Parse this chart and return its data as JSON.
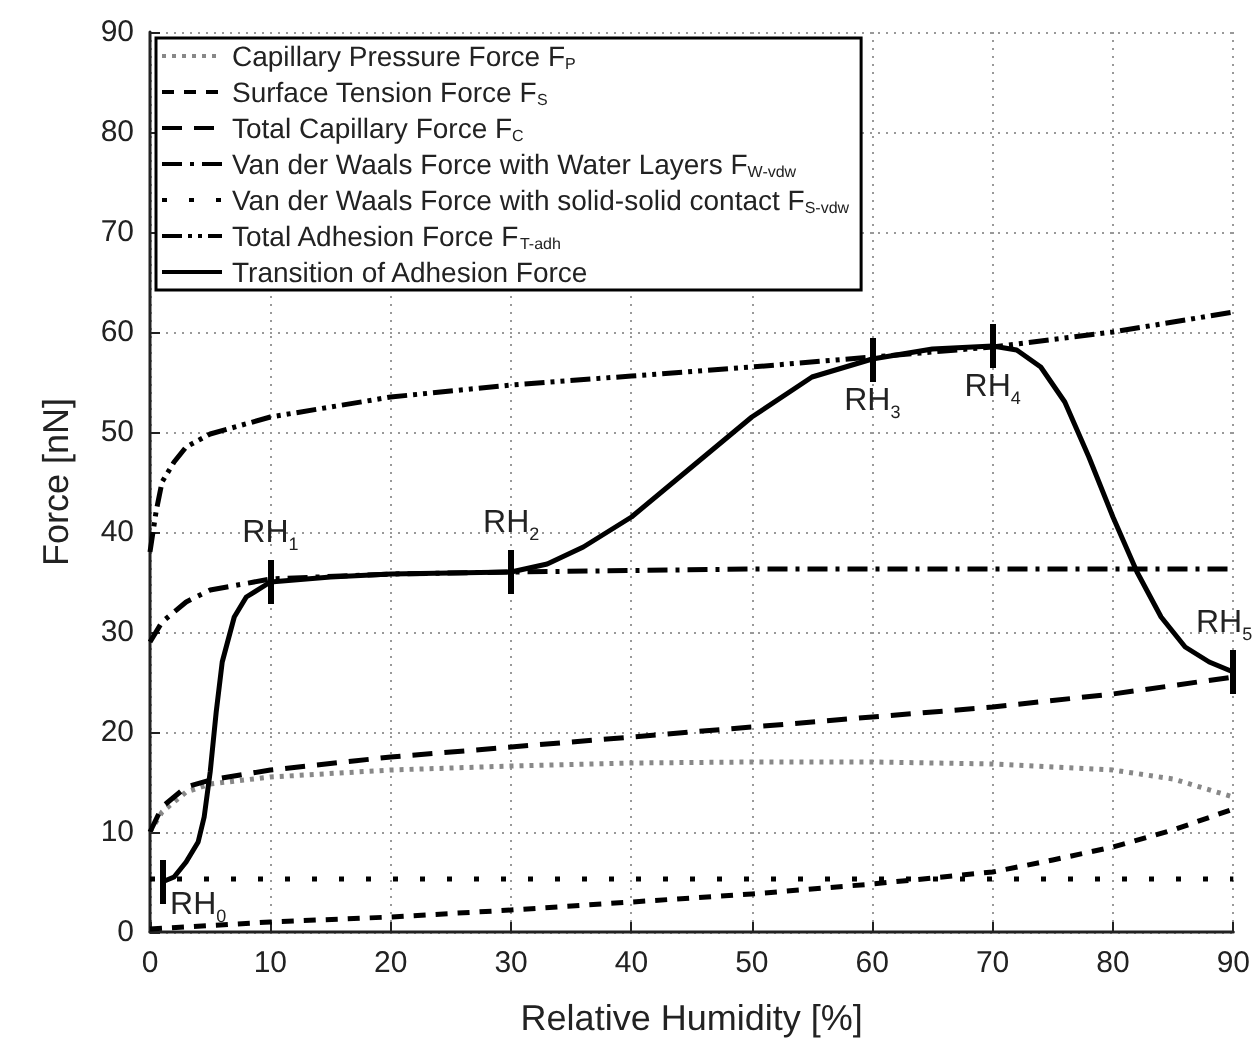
{
  "chart_data": {
    "type": "line",
    "xlabel": "Relative Humidity [%]",
    "ylabel": "Force [nN]",
    "xlim": [
      0,
      90
    ],
    "xticks": [
      0,
      10,
      20,
      30,
      40,
      50,
      60,
      70,
      80,
      90
    ],
    "ylim": [
      0,
      90
    ],
    "yticks": [
      0,
      10,
      20,
      30,
      40,
      50,
      60,
      70,
      80,
      90
    ],
    "grid": true,
    "legend": "top left",
    "marker": "none",
    "series": [
      {
        "name": "Capillary Pressure Force F$_{P}$",
        "color": "#888888",
        "line_style": "dotted",
        "x": [
          0,
          1,
          3,
          5,
          10,
          20,
          30,
          40,
          50,
          60,
          70,
          80,
          85,
          90
        ],
        "values": [
          10,
          12,
          14,
          14.8,
          15.5,
          16.2,
          16.6,
          16.9,
          17,
          17,
          16.8,
          16.2,
          15.3,
          13.5
        ]
      },
      {
        "name": "Surface Tension Force F$_{S}$",
        "color": "#000000",
        "line_style": "dashed",
        "x": [
          0,
          10,
          20,
          30,
          40,
          50,
          60,
          70,
          75,
          80,
          85,
          90
        ],
        "values": [
          0.3,
          1,
          1.5,
          2.2,
          3,
          3.8,
          4.8,
          6,
          7.2,
          8.5,
          10.2,
          12.3
        ]
      },
      {
        "name": "Total Capillary Force F$_{C}$",
        "color": "#000000",
        "line_style": "longdash",
        "x": [
          0,
          1,
          3,
          5,
          10,
          20,
          30,
          40,
          50,
          60,
          70,
          80,
          90
        ],
        "values": [
          10,
          12.5,
          14.5,
          15.2,
          16.2,
          17.5,
          18.5,
          19.5,
          20.5,
          21.5,
          22.5,
          23.8,
          25.5
        ]
      },
      {
        "name": "Van der Waals Force with Water Layers F$_{W-vdw}$",
        "color": "#000000",
        "line_style": "dashdot",
        "x": [
          0,
          1,
          3,
          5,
          10,
          20,
          30,
          50,
          70,
          90
        ],
        "values": [
          29,
          31,
          33,
          34.2,
          35.3,
          35.8,
          36,
          36.3,
          36.3,
          36.3
        ]
      },
      {
        "name": "Van der Waals Force with solid-solid contact F$_{S-vdw}$",
        "color": "#000000",
        "line_style": "sparsedot",
        "x": [
          0,
          90
        ],
        "values": [
          5.3,
          5.3
        ]
      },
      {
        "name": "Total Adhesion Force F$_{T-adh}$",
        "color": "#000000",
        "line_style": "dashdotdot",
        "x": [
          0,
          0.5,
          1,
          2,
          3,
          5,
          10,
          20,
          30,
          40,
          50,
          60,
          70,
          80,
          90
        ],
        "values": [
          38,
          42,
          45,
          47,
          48.5,
          49.8,
          51.5,
          53.5,
          54.7,
          55.6,
          56.5,
          57.5,
          58.5,
          60,
          62
        ]
      },
      {
        "name": "Transition of Adhesion Force",
        "color": "#000000",
        "line_style": "solid",
        "x": [
          1,
          2,
          3,
          4,
          4.5,
          5,
          5.5,
          6,
          7,
          8,
          10,
          15,
          20,
          30,
          33,
          36,
          40,
          45,
          50,
          55,
          60,
          65,
          70,
          72,
          74,
          76,
          78,
          80,
          82,
          84,
          86,
          88,
          90
        ],
        "values": [
          5,
          5.5,
          7,
          9,
          11.5,
          16,
          22,
          27,
          31.5,
          33.5,
          35,
          35.5,
          35.8,
          36,
          36.8,
          38.5,
          41.5,
          46.5,
          51.5,
          55.5,
          57.3,
          58.3,
          58.6,
          58.2,
          56.5,
          53,
          47.5,
          41.5,
          36,
          31.5,
          28.5,
          27,
          26
        ]
      }
    ],
    "annotations": [
      {
        "text": "RH$_{0}$",
        "x": 1,
        "y": 5
      },
      {
        "text": "RH$_{1}$",
        "x": 10,
        "y": 35
      },
      {
        "text": "RH$_{2}$",
        "x": 30,
        "y": 36
      },
      {
        "text": "RH$_{3}$",
        "x": 60,
        "y": 57.3
      },
      {
        "text": "RH$_{4}$",
        "x": 70,
        "y": 58.6
      },
      {
        "text": "RH$_{5}$",
        "x": 90,
        "y": 26
      }
    ]
  }
}
